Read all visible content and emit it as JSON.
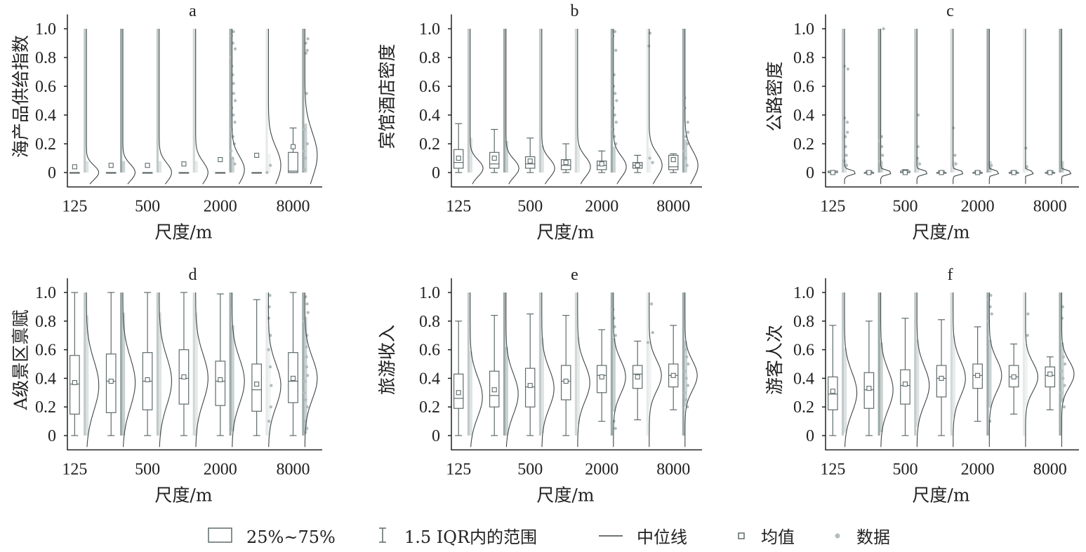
{
  "colors": {
    "ink": "#222222",
    "box": "#5f6b6b",
    "scale_shades": [
      "#c2cbcb",
      "#9eabab",
      "#c2cbcb",
      "#d3d9d9",
      "#9eabab",
      "#e6eaea",
      "#9eabab"
    ],
    "curve": "#3f4646",
    "data_point": "#b3bdbd"
  },
  "axis": {
    "x_tick_labels": [
      "125",
      "500",
      "2000",
      "8000"
    ],
    "x_tick_scale_index": [
      0,
      2,
      4,
      6
    ],
    "scales": [
      "125",
      "250",
      "500",
      "1000",
      "2000",
      "4000",
      "8000"
    ],
    "y_ticks": [
      0,
      0.2,
      0.4,
      0.6,
      0.8,
      1.0
    ],
    "y_tick_labels": [
      "0",
      "0.2",
      "0.4",
      "0.6",
      "0.8",
      "1.0"
    ],
    "ylim": [
      -0.1,
      1.1
    ],
    "xlabel": "尺度/m"
  },
  "legend": {
    "box_label": "25%~75%",
    "whisker_label": "1.5 IQR内的范围",
    "median_label": "中位线",
    "mean_label": "均值",
    "data_label": "数据"
  },
  "chart_data": [
    {
      "panel": "a",
      "type": "box-violin",
      "title": "a",
      "xlabel": "尺度/m",
      "ylabel": "海产品供给指数",
      "categories": [
        "125",
        "250",
        "500",
        "1000",
        "2000",
        "4000",
        "8000"
      ],
      "series": [
        {
          "q1": 0.0,
          "median": 0.0,
          "q3": 0.0,
          "lo": 0.0,
          "hi": 0.0,
          "mean": 0.04,
          "curve_peak": 0.0,
          "curve_width": 0.12,
          "curve_amp": 0.34,
          "dots": []
        },
        {
          "q1": 0.0,
          "median": 0.0,
          "q3": 0.0,
          "lo": 0.0,
          "hi": 0.0,
          "mean": 0.05,
          "curve_peak": 0.0,
          "curve_width": 0.14,
          "curve_amp": 0.34,
          "dots": []
        },
        {
          "q1": 0.0,
          "median": 0.0,
          "q3": 0.0,
          "lo": 0.0,
          "hi": 0.0,
          "mean": 0.05,
          "curve_peak": 0.0,
          "curve_width": 0.16,
          "curve_amp": 0.34,
          "dots": []
        },
        {
          "q1": 0.0,
          "median": 0.0,
          "q3": 0.0,
          "lo": 0.0,
          "hi": 0.0,
          "mean": 0.06,
          "curve_peak": 0.0,
          "curve_width": 0.18,
          "curve_amp": 0.34,
          "dots": []
        },
        {
          "q1": 0.0,
          "median": 0.0,
          "q3": 0.0,
          "lo": 0.0,
          "hi": 0.0,
          "mean": 0.09,
          "curve_peak": 0.02,
          "curve_width": 0.22,
          "curve_amp": 0.34,
          "dots": [
            0.98,
            0.95,
            0.9,
            0.86,
            0.8,
            0.74,
            0.68,
            0.62,
            0.55,
            0.5,
            0.45,
            0.4,
            0.35,
            0.3,
            0.25,
            0.2,
            0.15,
            0.1,
            0.06
          ]
        },
        {
          "q1": 0.0,
          "median": 0.0,
          "q3": 0.0,
          "lo": 0.0,
          "hi": 0.0,
          "mean": 0.12,
          "curve_peak": 0.05,
          "curve_width": 0.3,
          "curve_amp": 0.34,
          "dots": [
            0.05,
            0.0
          ]
        },
        {
          "q1": 0.0,
          "median": 0.01,
          "q3": 0.14,
          "lo": 0.0,
          "hi": 0.31,
          "mean": 0.18,
          "curve_peak": 0.12,
          "curve_width": 0.38,
          "curve_amp": 0.34,
          "dots": [
            0.93,
            0.9,
            0.85,
            0.83,
            0.55,
            0.3,
            0.2,
            0.15,
            0.1,
            0.02
          ]
        }
      ]
    },
    {
      "panel": "b",
      "type": "box-violin",
      "title": "b",
      "xlabel": "尺度/m",
      "ylabel": "宾馆酒店密度",
      "categories": [
        "125",
        "250",
        "500",
        "1000",
        "2000",
        "4000",
        "8000"
      ],
      "series": [
        {
          "q1": 0.03,
          "median": 0.07,
          "q3": 0.16,
          "lo": 0.0,
          "hi": 0.34,
          "mean": 0.1,
          "curve_peak": 0.03,
          "curve_width": 0.14,
          "curve_amp": 0.36,
          "dots": []
        },
        {
          "q1": 0.03,
          "median": 0.06,
          "q3": 0.14,
          "lo": 0.0,
          "hi": 0.3,
          "mean": 0.1,
          "curve_peak": 0.03,
          "curve_width": 0.15,
          "curve_amp": 0.36,
          "dots": []
        },
        {
          "q1": 0.03,
          "median": 0.06,
          "q3": 0.11,
          "lo": 0.0,
          "hi": 0.24,
          "mean": 0.08,
          "curve_peak": 0.03,
          "curve_width": 0.16,
          "curve_amp": 0.36,
          "dots": []
        },
        {
          "q1": 0.02,
          "median": 0.05,
          "q3": 0.09,
          "lo": 0.0,
          "hi": 0.2,
          "mean": 0.07,
          "curve_peak": 0.04,
          "curve_width": 0.17,
          "curve_amp": 0.36,
          "dots": []
        },
        {
          "q1": 0.02,
          "median": 0.05,
          "q3": 0.08,
          "lo": 0.0,
          "hi": 0.15,
          "mean": 0.06,
          "curve_peak": 0.04,
          "curve_width": 0.18,
          "curve_amp": 0.36,
          "dots": [
            0.98,
            0.95,
            0.85,
            0.68,
            0.6,
            0.55,
            0.5,
            0.45,
            0.4,
            0.35,
            0.3,
            0.25,
            0.2
          ]
        },
        {
          "q1": 0.03,
          "median": 0.05,
          "q3": 0.07,
          "lo": 0.0,
          "hi": 0.12,
          "mean": 0.05,
          "curve_peak": 0.05,
          "curve_width": 0.2,
          "curve_amp": 0.36,
          "dots": [
            0.97,
            0.88,
            0.1,
            0.07
          ]
        },
        {
          "q1": 0.02,
          "median": 0.04,
          "q3": 0.12,
          "lo": 0.0,
          "hi": 0.13,
          "mean": 0.09,
          "curve_peak": 0.05,
          "curve_width": 0.24,
          "curve_amp": 0.36,
          "dots": [
            0.52,
            0.45,
            0.35,
            0.28,
            0.25,
            0.2,
            0.15,
            0.1,
            0.05
          ]
        }
      ]
    },
    {
      "panel": "c",
      "type": "box-violin",
      "title": "c",
      "xlabel": "尺度/m",
      "ylabel": "公路密度",
      "categories": [
        "125",
        "250",
        "500",
        "1000",
        "2000",
        "4000",
        "8000"
      ],
      "series": [
        {
          "q1": 0.0,
          "median": 0.0,
          "q3": 0.01,
          "lo": 0.0,
          "hi": 0.01,
          "mean": 0.0,
          "curve_peak": 0.0,
          "curve_width": 0.035,
          "curve_amp": 0.34,
          "dots": [
            0.74,
            0.72,
            0.38,
            0.35,
            0.28,
            0.25,
            0.18,
            0.12,
            0.08,
            0.05
          ]
        },
        {
          "q1": 0.0,
          "median": 0.0,
          "q3": 0.0,
          "lo": 0.0,
          "hi": 0.01,
          "mean": 0.0,
          "curve_peak": 0.0,
          "curve_width": 0.03,
          "curve_amp": 0.34,
          "dots": [
            1.0,
            0.25,
            0.22,
            0.18,
            0.12,
            0.08
          ]
        },
        {
          "q1": 0.0,
          "median": 0.0,
          "q3": 0.01,
          "lo": 0.0,
          "hi": 0.02,
          "mean": 0.0,
          "curve_peak": 0.0,
          "curve_width": 0.03,
          "curve_amp": 0.34,
          "dots": [
            0.4,
            0.18,
            0.1,
            0.06
          ]
        },
        {
          "q1": 0.0,
          "median": 0.0,
          "q3": 0.0,
          "lo": 0.0,
          "hi": 0.01,
          "mean": 0.0,
          "curve_peak": 0.0,
          "curve_width": 0.028,
          "curve_amp": 0.34,
          "dots": [
            0.31,
            0.12,
            0.06
          ]
        },
        {
          "q1": 0.0,
          "median": 0.0,
          "q3": 0.0,
          "lo": 0.0,
          "hi": 0.01,
          "mean": 0.0,
          "curve_peak": 0.0,
          "curve_width": 0.025,
          "curve_amp": 0.34,
          "dots": [
            0.05,
            0.03
          ]
        },
        {
          "q1": 0.0,
          "median": 0.0,
          "q3": 0.0,
          "lo": 0.0,
          "hi": 0.01,
          "mean": 0.0,
          "curve_peak": 0.0,
          "curve_width": 0.02,
          "curve_amp": 0.34,
          "dots": [
            0.17,
            0.04
          ]
        },
        {
          "q1": 0.0,
          "median": 0.0,
          "q3": 0.0,
          "lo": 0.0,
          "hi": 0.01,
          "mean": 0.0,
          "curve_peak": 0.0,
          "curve_width": 0.025,
          "curve_amp": 0.34,
          "dots": [
            0.02
          ]
        }
      ]
    },
    {
      "panel": "d",
      "type": "box-violin",
      "title": "d",
      "xlabel": "尺度/m",
      "ylabel": "A级景区禀赋",
      "categories": [
        "125",
        "250",
        "500",
        "1000",
        "2000",
        "4000",
        "8000"
      ],
      "series": [
        {
          "q1": 0.15,
          "median": 0.36,
          "q3": 0.56,
          "lo": 0.0,
          "hi": 1.0,
          "mean": 0.37,
          "curve_peak": 0.35,
          "curve_width": 0.42,
          "curve_amp": 0.34,
          "dots": []
        },
        {
          "q1": 0.16,
          "median": 0.38,
          "q3": 0.57,
          "lo": 0.0,
          "hi": 1.0,
          "mean": 0.38,
          "curve_peak": 0.37,
          "curve_width": 0.42,
          "curve_amp": 0.34,
          "dots": []
        },
        {
          "q1": 0.18,
          "median": 0.38,
          "q3": 0.58,
          "lo": 0.0,
          "hi": 1.0,
          "mean": 0.39,
          "curve_peak": 0.38,
          "curve_width": 0.41,
          "curve_amp": 0.34,
          "dots": []
        },
        {
          "q1": 0.22,
          "median": 0.4,
          "q3": 0.6,
          "lo": 0.0,
          "hi": 1.0,
          "mean": 0.41,
          "curve_peak": 0.4,
          "curve_width": 0.4,
          "curve_amp": 0.34,
          "dots": []
        },
        {
          "q1": 0.21,
          "median": 0.38,
          "q3": 0.52,
          "lo": 0.0,
          "hi": 0.99,
          "mean": 0.39,
          "curve_peak": 0.38,
          "curve_width": 0.38,
          "curve_amp": 0.34,
          "dots": []
        },
        {
          "q1": 0.17,
          "median": 0.32,
          "q3": 0.5,
          "lo": 0.0,
          "hi": 0.95,
          "mean": 0.36,
          "curve_peak": 0.35,
          "curve_width": 0.36,
          "curve_amp": 0.34,
          "dots": [
            0.98,
            0.9,
            0.82,
            0.7,
            0.6,
            0.48,
            0.35,
            0.2,
            0.1
          ]
        },
        {
          "q1": 0.23,
          "median": 0.38,
          "q3": 0.58,
          "lo": 0.0,
          "hi": 1.0,
          "mean": 0.4,
          "curve_peak": 0.4,
          "curve_width": 0.35,
          "curve_amp": 0.34,
          "dots": [
            0.97,
            0.92,
            0.86,
            0.8,
            0.7,
            0.62,
            0.55,
            0.48,
            0.42,
            0.38,
            0.3,
            0.25,
            0.2,
            0.1,
            0.05,
            0.02
          ]
        }
      ]
    },
    {
      "panel": "e",
      "type": "box-violin",
      "title": "e",
      "xlabel": "尺度/m",
      "ylabel": "旅游收入",
      "categories": [
        "125",
        "250",
        "500",
        "1000",
        "2000",
        "4000",
        "8000"
      ],
      "series": [
        {
          "q1": 0.19,
          "median": 0.26,
          "q3": 0.43,
          "lo": 0.0,
          "hi": 0.8,
          "mean": 0.3,
          "curve_peak": 0.27,
          "curve_width": 0.34,
          "curve_amp": 0.34,
          "dots": []
        },
        {
          "q1": 0.2,
          "median": 0.28,
          "q3": 0.45,
          "lo": 0.0,
          "hi": 0.84,
          "mean": 0.32,
          "curve_peak": 0.29,
          "curve_width": 0.34,
          "curve_amp": 0.34,
          "dots": []
        },
        {
          "q1": 0.2,
          "median": 0.34,
          "q3": 0.47,
          "lo": 0.0,
          "hi": 0.85,
          "mean": 0.35,
          "curve_peak": 0.33,
          "curve_width": 0.33,
          "curve_amp": 0.34,
          "dots": []
        },
        {
          "q1": 0.25,
          "median": 0.38,
          "q3": 0.49,
          "lo": 0.0,
          "hi": 0.84,
          "mean": 0.38,
          "curve_peak": 0.37,
          "curve_width": 0.31,
          "curve_amp": 0.34,
          "dots": []
        },
        {
          "q1": 0.3,
          "median": 0.42,
          "q3": 0.49,
          "lo": 0.1,
          "hi": 0.74,
          "mean": 0.41,
          "curve_peak": 0.41,
          "curve_width": 0.28,
          "curve_amp": 0.34,
          "dots": [
            0.88,
            0.82,
            0.76,
            0.7,
            0.1,
            0.05
          ]
        },
        {
          "q1": 0.33,
          "median": 0.43,
          "q3": 0.49,
          "lo": 0.11,
          "hi": 0.66,
          "mean": 0.41,
          "curve_peak": 0.42,
          "curve_width": 0.26,
          "curve_amp": 0.34,
          "dots": [
            0.92,
            0.72,
            0.65
          ]
        },
        {
          "q1": 0.34,
          "median": 0.42,
          "q3": 0.5,
          "lo": 0.18,
          "hi": 0.77,
          "mean": 0.42,
          "curve_peak": 0.42,
          "curve_width": 0.25,
          "curve_amp": 0.34,
          "dots": [
            0.6,
            0.55,
            0.5,
            0.45,
            0.4,
            0.35,
            0.3,
            0.25,
            0.2
          ]
        }
      ]
    },
    {
      "panel": "f",
      "type": "box-violin",
      "title": "f",
      "xlabel": "尺度/m",
      "ylabel": "游客人次",
      "categories": [
        "125",
        "250",
        "500",
        "1000",
        "2000",
        "4000",
        "8000"
      ],
      "series": [
        {
          "q1": 0.18,
          "median": 0.29,
          "q3": 0.41,
          "lo": 0.0,
          "hi": 0.77,
          "mean": 0.31,
          "curve_peak": 0.3,
          "curve_width": 0.34,
          "curve_amp": 0.34,
          "dots": []
        },
        {
          "q1": 0.19,
          "median": 0.32,
          "q3": 0.44,
          "lo": 0.0,
          "hi": 0.8,
          "mean": 0.33,
          "curve_peak": 0.32,
          "curve_width": 0.33,
          "curve_amp": 0.34,
          "dots": []
        },
        {
          "q1": 0.22,
          "median": 0.35,
          "q3": 0.46,
          "lo": 0.0,
          "hi": 0.82,
          "mean": 0.36,
          "curve_peak": 0.35,
          "curve_width": 0.32,
          "curve_amp": 0.34,
          "dots": []
        },
        {
          "q1": 0.27,
          "median": 0.4,
          "q3": 0.49,
          "lo": 0.0,
          "hi": 0.81,
          "mean": 0.4,
          "curve_peak": 0.4,
          "curve_width": 0.3,
          "curve_amp": 0.34,
          "dots": []
        },
        {
          "q1": 0.33,
          "median": 0.42,
          "q3": 0.5,
          "lo": 0.1,
          "hi": 0.76,
          "mean": 0.42,
          "curve_peak": 0.42,
          "curve_width": 0.27,
          "curve_amp": 0.34,
          "dots": [
            0.98,
            0.95,
            0.9,
            0.85,
            0.8,
            0.1
          ]
        },
        {
          "q1": 0.34,
          "median": 0.41,
          "q3": 0.49,
          "lo": 0.15,
          "hi": 0.64,
          "mean": 0.41,
          "curve_peak": 0.41,
          "curve_width": 0.24,
          "curve_amp": 0.34,
          "dots": [
            0.85,
            0.7
          ]
        },
        {
          "q1": 0.34,
          "median": 0.42,
          "q3": 0.48,
          "lo": 0.18,
          "hi": 0.55,
          "mean": 0.43,
          "curve_peak": 0.43,
          "curve_width": 0.22,
          "curve_amp": 0.34,
          "dots": [
            0.9,
            0.82,
            0.55,
            0.5,
            0.45,
            0.4,
            0.35,
            0.3,
            0.25,
            0.2
          ]
        }
      ]
    }
  ]
}
